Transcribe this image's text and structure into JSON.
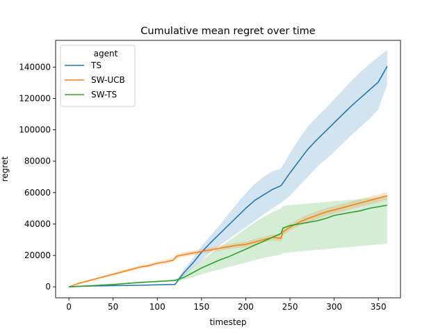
{
  "chart_data": {
    "type": "line",
    "title": "Cumulative mean regret over time",
    "xlabel": "timestep",
    "ylabel": "regret",
    "xlim": [
      -15,
      375
    ],
    "ylim": [
      -7000,
      157000
    ],
    "xticks": [
      0,
      50,
      100,
      150,
      200,
      250,
      300,
      350
    ],
    "yticks": [
      0,
      20000,
      40000,
      60000,
      80000,
      100000,
      120000,
      140000
    ],
    "grid": false,
    "legend": {
      "title": "agent",
      "position": "top-left"
    },
    "series": [
      {
        "name": "TS",
        "color": "#1f77b4",
        "x": [
          0,
          20,
          50,
          80,
          100,
          120,
          122,
          130,
          140,
          150,
          160,
          170,
          180,
          190,
          200,
          210,
          220,
          230,
          240,
          250,
          260,
          270,
          280,
          290,
          300,
          310,
          320,
          330,
          340,
          350,
          360
        ],
        "y": [
          0,
          500,
          800,
          1000,
          1300,
          1500,
          3000,
          9000,
          15000,
          22000,
          28000,
          33500,
          39000,
          44500,
          50000,
          55000,
          58500,
          62000,
          64500,
          72500,
          80000,
          87500,
          93500,
          99000,
          104500,
          110000,
          115500,
          120500,
          125500,
          130500,
          140500
        ],
        "lower": [
          0,
          400,
          700,
          900,
          1100,
          1300,
          2500,
          7000,
          12000,
          17000,
          22000,
          26000,
          30000,
          34000,
          38000,
          42000,
          46000,
          50000,
          53500,
          58000,
          64000,
          70000,
          76000,
          81000,
          86000,
          91500,
          97000,
          102000,
          107000,
          113000,
          129000
        ],
        "upper": [
          0,
          600,
          950,
          1150,
          1500,
          1700,
          3500,
          11000,
          18000,
          26000,
          32500,
          39000,
          46000,
          53000,
          59500,
          65500,
          70000,
          73500,
          75500,
          85000,
          94000,
          102000,
          108000,
          113500,
          119500,
          125500,
          131500,
          137000,
          142000,
          146500,
          151000
        ]
      },
      {
        "name": "SW-UCB",
        "color": "#ff7f0e",
        "x": [
          0,
          10,
          20,
          30,
          40,
          50,
          60,
          70,
          80,
          90,
          100,
          110,
          118,
          122,
          130,
          140,
          150,
          160,
          170,
          180,
          190,
          200,
          210,
          220,
          230,
          240,
          242,
          250,
          260,
          270,
          280,
          290,
          300,
          310,
          320,
          330,
          340,
          350,
          360
        ],
        "y": [
          0,
          2000,
          3500,
          5000,
          6500,
          8000,
          9500,
          11000,
          12500,
          13500,
          15000,
          16000,
          17000,
          19500,
          20500,
          21500,
          22500,
          23500,
          24500,
          25500,
          26500,
          27000,
          28500,
          30000,
          31500,
          31000,
          35000,
          38000,
          41000,
          43500,
          45500,
          47500,
          49000,
          50500,
          52000,
          53500,
          55000,
          56500,
          58000
        ],
        "lower": [
          0,
          1500,
          3000,
          4300,
          5800,
          7200,
          8600,
          10000,
          11500,
          12500,
          14000,
          15000,
          15800,
          18000,
          19000,
          20000,
          21000,
          22000,
          23000,
          24000,
          24800,
          25300,
          26800,
          28200,
          29500,
          29000,
          33000,
          36000,
          38800,
          41000,
          43000,
          45000,
          46500,
          48000,
          49500,
          51000,
          52500,
          54000,
          55500
        ],
        "upper": [
          0,
          2500,
          4100,
          5700,
          7300,
          8800,
          10400,
          12000,
          13600,
          14600,
          16200,
          17200,
          18300,
          21000,
          22000,
          23100,
          24100,
          25100,
          26100,
          27100,
          28200,
          28800,
          30300,
          31900,
          33500,
          33000,
          37000,
          40200,
          43300,
          46000,
          48000,
          50000,
          51500,
          53000,
          54500,
          56000,
          57500,
          59000,
          60500
        ]
      },
      {
        "name": "SW-TS",
        "color": "#2ca02c",
        "x": [
          0,
          20,
          50,
          80,
          100,
          120,
          130,
          140,
          150,
          160,
          170,
          180,
          190,
          200,
          210,
          220,
          230,
          240,
          242,
          250,
          260,
          270,
          280,
          290,
          300,
          310,
          320,
          330,
          340,
          350,
          360
        ],
        "y": [
          0,
          600,
          1500,
          2800,
          3400,
          4100,
          6000,
          9000,
          12000,
          14500,
          17000,
          19000,
          21500,
          24000,
          26500,
          29000,
          31500,
          34000,
          37500,
          39000,
          40000,
          41000,
          42000,
          43500,
          45500,
          46500,
          47500,
          48500,
          50000,
          51000,
          52000
        ],
        "lower": [
          0,
          400,
          1200,
          2300,
          2900,
          3500,
          4500,
          6000,
          8000,
          9500,
          11000,
          12500,
          14000,
          15500,
          17000,
          18500,
          19500,
          20500,
          21500,
          22000,
          22500,
          23000,
          23500,
          24000,
          24500,
          25000,
          25500,
          26000,
          26500,
          27000,
          27500
        ],
        "upper": [
          0,
          800,
          1800,
          3300,
          3900,
          4700,
          8000,
          12500,
          17000,
          21000,
          25000,
          29000,
          33000,
          37000,
          41000,
          44500,
          47500,
          50000,
          51500,
          52000,
          52500,
          53000,
          53500,
          54000,
          54500,
          55000,
          55500,
          56000,
          56500,
          57000,
          57500
        ]
      }
    ]
  }
}
